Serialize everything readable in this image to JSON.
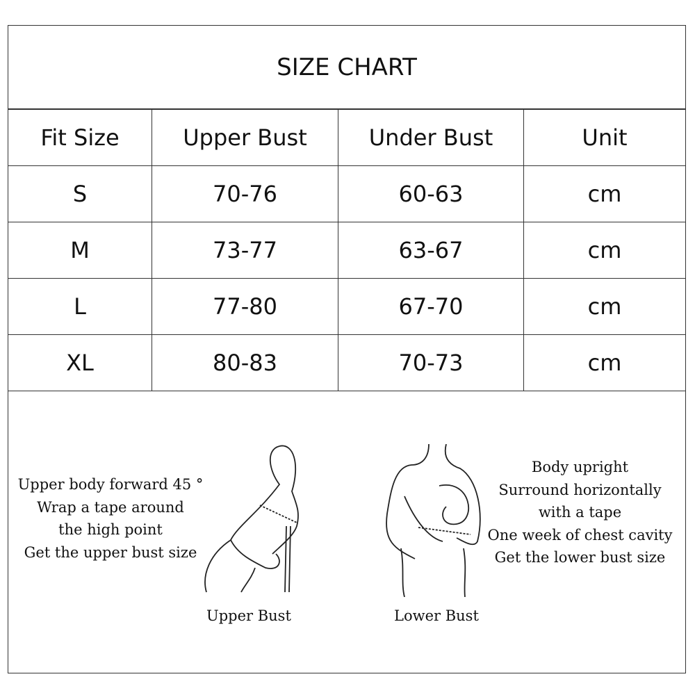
{
  "title": "SIZE CHART",
  "table": {
    "headers": [
      "Fit Size",
      "Upper Bust",
      "Under Bust",
      "Unit"
    ],
    "rows": [
      [
        "S",
        "70-76",
        "60-63",
        "cm"
      ],
      [
        "M",
        "73-77",
        "63-67",
        "cm"
      ],
      [
        "L",
        "77-80",
        "67-70",
        "cm"
      ],
      [
        "XL",
        "80-83",
        "70-73",
        "cm"
      ]
    ]
  },
  "instructions": {
    "upper": {
      "lines": [
        "Upper body forward 45 °",
        "Wrap a tape around",
        "the high point",
        "Get the upper bust size"
      ],
      "caption": "Upper Bust"
    },
    "lower": {
      "lines": [
        "Body upright",
        "Surround horizontally",
        "with a tape",
        "One week of chest cavity",
        "Get the lower bust size"
      ],
      "caption": "Lower Bust"
    }
  }
}
